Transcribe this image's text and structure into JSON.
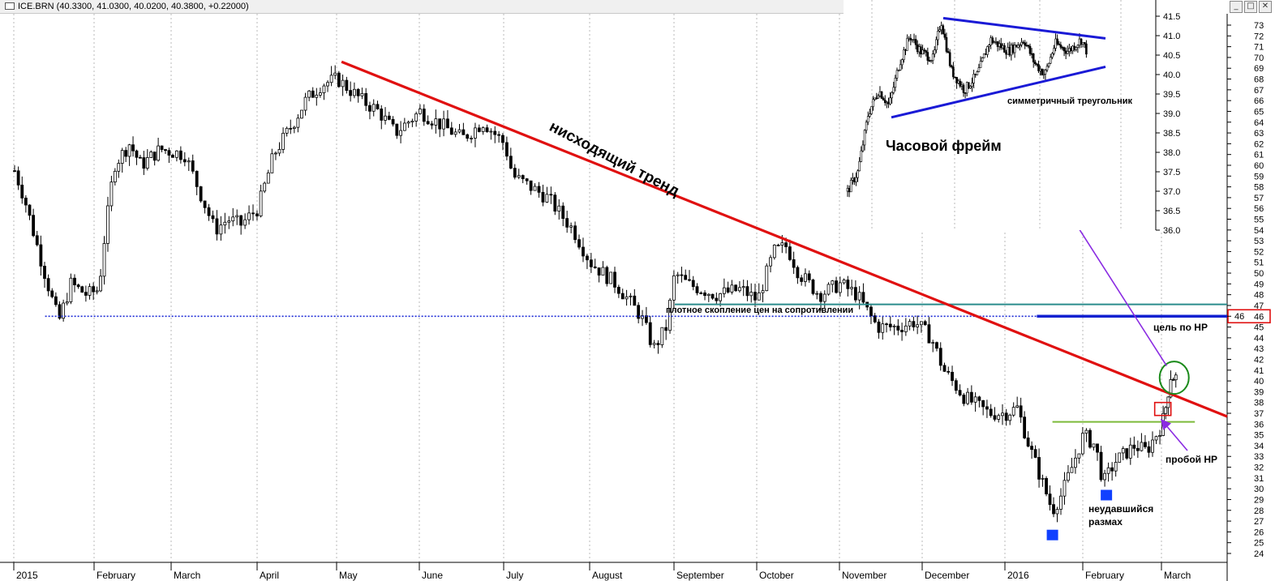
{
  "window": {
    "symbol_header": "ICE.BRN (40.3300, 41.0300, 40.0200, 40.3800, +0.22000)",
    "minimize_glyph": "_",
    "maximize_glyph": "□",
    "close_glyph": "✕"
  },
  "colors": {
    "candle": "#000000",
    "downtrend": "#e01010",
    "resistance": "#2a8c8c",
    "support_dotted": "#1e2cd6",
    "breakout_level": "#7cba3a",
    "target": "#1020d0",
    "arrow": "#8a2be2",
    "marker": "#1040ff"
  },
  "chart_data": [
    {
      "type": "candlestick",
      "x_axis_labels": [
        "2015",
        "February",
        "March",
        "April",
        "May",
        "June",
        "July",
        "August",
        "September",
        "October",
        "November",
        "December",
        "2016",
        "February",
        "March"
      ],
      "y_ticks": [
        24,
        25,
        26,
        27,
        28,
        29,
        30,
        31,
        32,
        33,
        34,
        35,
        36,
        37,
        38,
        39,
        40,
        41,
        42,
        43,
        44,
        45,
        46,
        47,
        48,
        49,
        50,
        51,
        52,
        53,
        54,
        55,
        56,
        57,
        58,
        59,
        60,
        61,
        62,
        63,
        64,
        65,
        66,
        67,
        68,
        69,
        70,
        71,
        72,
        73
      ],
      "ylim": [
        23,
        73.8
      ],
      "price_path": [
        {
          "x": 0,
          "y": 59.5
        },
        {
          "x": 0.12,
          "y": 57
        },
        {
          "x": 0.3,
          "y": 52
        },
        {
          "x": 0.45,
          "y": 48
        },
        {
          "x": 0.55,
          "y": 45.5
        },
        {
          "x": 0.7,
          "y": 49
        },
        {
          "x": 0.9,
          "y": 48
        },
        {
          "x": 1.05,
          "y": 48.5
        },
        {
          "x": 1.12,
          "y": 53
        },
        {
          "x": 1.25,
          "y": 60
        },
        {
          "x": 1.45,
          "y": 62
        },
        {
          "x": 1.6,
          "y": 60
        },
        {
          "x": 1.85,
          "y": 61.5
        },
        {
          "x": 2.15,
          "y": 61
        },
        {
          "x": 2.35,
          "y": 57
        },
        {
          "x": 2.5,
          "y": 54
        },
        {
          "x": 2.65,
          "y": 55
        },
        {
          "x": 2.8,
          "y": 54.5
        },
        {
          "x": 3.0,
          "y": 56
        },
        {
          "x": 3.2,
          "y": 61
        },
        {
          "x": 3.45,
          "y": 64
        },
        {
          "x": 3.6,
          "y": 66
        },
        {
          "x": 3.8,
          "y": 67.5
        },
        {
          "x": 4.0,
          "y": 68
        },
        {
          "x": 4.3,
          "y": 66
        },
        {
          "x": 4.5,
          "y": 65
        },
        {
          "x": 4.7,
          "y": 63
        },
        {
          "x": 5.0,
          "y": 65
        },
        {
          "x": 5.3,
          "y": 63.5
        },
        {
          "x": 5.5,
          "y": 62.5
        },
        {
          "x": 5.75,
          "y": 64
        },
        {
          "x": 6.0,
          "y": 62
        },
        {
          "x": 6.1,
          "y": 59
        },
        {
          "x": 6.3,
          "y": 58
        },
        {
          "x": 6.5,
          "y": 57
        },
        {
          "x": 6.8,
          "y": 54
        },
        {
          "x": 7.0,
          "y": 51
        },
        {
          "x": 7.3,
          "y": 49
        },
        {
          "x": 7.6,
          "y": 46
        },
        {
          "x": 7.75,
          "y": 43
        },
        {
          "x": 7.9,
          "y": 45
        },
        {
          "x": 8.0,
          "y": 50
        },
        {
          "x": 8.15,
          "y": 49
        },
        {
          "x": 8.5,
          "y": 48
        },
        {
          "x": 8.8,
          "y": 48.5
        },
        {
          "x": 9.0,
          "y": 47.5
        },
        {
          "x": 9.2,
          "y": 52
        },
        {
          "x": 9.35,
          "y": 52.5
        },
        {
          "x": 9.5,
          "y": 50
        },
        {
          "x": 9.75,
          "y": 48
        },
        {
          "x": 10.0,
          "y": 49
        },
        {
          "x": 10.2,
          "y": 48
        },
        {
          "x": 10.45,
          "y": 45
        },
        {
          "x": 10.7,
          "y": 45
        },
        {
          "x": 10.9,
          "y": 45.5
        },
        {
          "x": 11.1,
          "y": 44
        },
        {
          "x": 11.25,
          "y": 41
        },
        {
          "x": 11.5,
          "y": 38.5
        },
        {
          "x": 11.8,
          "y": 37
        },
        {
          "x": 12.0,
          "y": 37
        },
        {
          "x": 12.15,
          "y": 37.5
        },
        {
          "x": 12.3,
          "y": 34
        },
        {
          "x": 12.45,
          "y": 31
        },
        {
          "x": 12.6,
          "y": 28
        },
        {
          "x": 12.72,
          "y": 29.5
        },
        {
          "x": 12.85,
          "y": 32
        },
        {
          "x": 13.0,
          "y": 35
        },
        {
          "x": 13.15,
          "y": 34
        },
        {
          "x": 13.25,
          "y": 30.5
        },
        {
          "x": 13.4,
          "y": 32.5
        },
        {
          "x": 13.65,
          "y": 34
        },
        {
          "x": 13.8,
          "y": 33.5
        },
        {
          "x": 14.0,
          "y": 36
        },
        {
          "x": 14.08,
          "y": 38
        },
        {
          "x": 14.15,
          "y": 40.5
        },
        {
          "x": 14.25,
          "y": 40.3
        }
      ],
      "annotations": {
        "downtrend_label": "нисходящий тренд",
        "resistance_label": "плотное скопление цен на сопротивлении",
        "target_label": "цель по НР",
        "breakout_label": "пробой НР",
        "failed_swing_line1": "неудавшийся",
        "failed_swing_line2": "размах",
        "target_price": "46"
      }
    },
    {
      "type": "candlestick",
      "title": "Часовой фрейм",
      "pattern_label": "симметричный треугольник",
      "y_ticks": [
        "36.0",
        "36.5",
        "37.0",
        "37.5",
        "38.0",
        "38.5",
        "39.0",
        "39.5",
        "40.0",
        "40.5",
        "41.0",
        "41.5"
      ],
      "ylim": [
        35.95,
        41.55
      ],
      "price_path": [
        {
          "x": 0,
          "y": 37.0
        },
        {
          "x": 0.04,
          "y": 37.5
        },
        {
          "x": 0.08,
          "y": 39.0
        },
        {
          "x": 0.12,
          "y": 39.6
        },
        {
          "x": 0.16,
          "y": 39.2
        },
        {
          "x": 0.2,
          "y": 40.3
        },
        {
          "x": 0.24,
          "y": 41.0
        },
        {
          "x": 0.28,
          "y": 40.6
        },
        {
          "x": 0.33,
          "y": 40.4
        },
        {
          "x": 0.36,
          "y": 41.4
        },
        {
          "x": 0.4,
          "y": 40.1
        },
        {
          "x": 0.45,
          "y": 39.6
        },
        {
          "x": 0.5,
          "y": 40.0
        },
        {
          "x": 0.55,
          "y": 40.9
        },
        {
          "x": 0.62,
          "y": 40.6
        },
        {
          "x": 0.68,
          "y": 40.9
        },
        {
          "x": 0.72,
          "y": 40.3
        },
        {
          "x": 0.76,
          "y": 40.0
        },
        {
          "x": 0.8,
          "y": 40.8
        },
        {
          "x": 0.85,
          "y": 40.6
        },
        {
          "x": 0.9,
          "y": 40.9
        },
        {
          "x": 0.95,
          "y": 40.2
        },
        {
          "x": 1.0,
          "y": 40.4
        }
      ]
    }
  ]
}
